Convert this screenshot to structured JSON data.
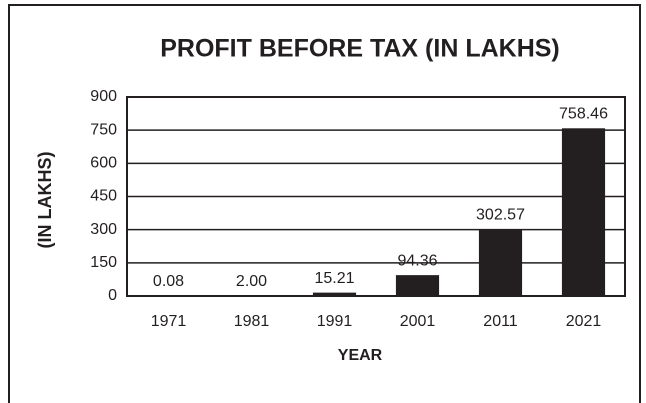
{
  "chart_data": {
    "type": "bar",
    "title": "PROFIT BEFORE TAX (IN LAKHS)",
    "x_label": "YEAR",
    "y_label": "(IN LAKHS)",
    "categories": [
      "1971",
      "1981",
      "1991",
      "2001",
      "2011",
      "2021"
    ],
    "values": [
      0.08,
      2,
      15.21,
      94.36,
      302.57,
      758.46
    ],
    "value_labels": [
      "0.08",
      "2.00",
      "15.21",
      "94.36",
      "302.57",
      "758.46"
    ],
    "color": "#231f20",
    "ylim": [
      0,
      900
    ],
    "yticks": [
      0,
      150,
      300,
      450,
      600,
      750,
      900
    ],
    "grid": true
  }
}
